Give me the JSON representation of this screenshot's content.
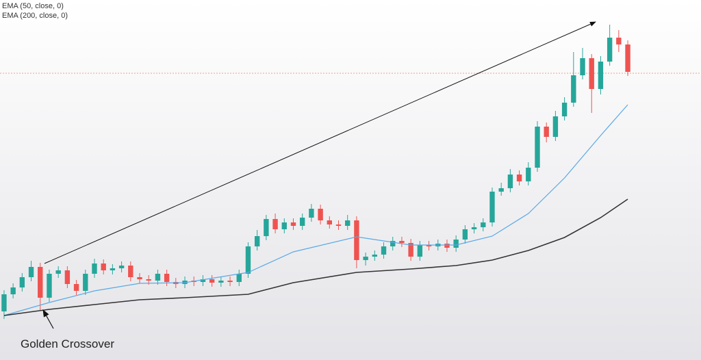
{
  "chart_data": {
    "type": "candlestick",
    "annotation": "Golden Crossover",
    "xlim": [
      -0.45,
      77.1
    ],
    "ylim": [
      0,
      526
    ],
    "up_color": "#26a69a",
    "down_color": "#ef5350",
    "open": [
      71,
      96,
      106,
      121,
      136,
      91,
      126,
      131,
      111,
      101,
      126,
      141,
      131,
      134,
      138,
      121,
      118,
      116,
      126,
      114,
      111,
      116,
      114,
      118,
      113,
      116,
      114,
      126,
      166,
      181,
      206,
      191,
      201,
      196,
      208,
      221,
      204,
      198,
      196,
      204,
      146,
      151,
      154,
      166,
      174,
      171,
      151,
      168,
      166,
      170,
      164,
      176,
      191,
      194,
      201,
      246,
      251,
      271,
      261,
      281,
      341,
      326,
      356,
      376,
      416,
      441,
      396,
      436,
      471,
      461
    ],
    "high": [
      102,
      112,
      127,
      145,
      142,
      132,
      137,
      137,
      117,
      132,
      148,
      147,
      140,
      144,
      144,
      127,
      124,
      132,
      132,
      120,
      122,
      122,
      124,
      124,
      122,
      122,
      132,
      172,
      190,
      212,
      214,
      207,
      207,
      214,
      228,
      227,
      210,
      204,
      212,
      210,
      157,
      160,
      172,
      180,
      180,
      177,
      174,
      174,
      176,
      176,
      182,
      197,
      200,
      207,
      252,
      259,
      279,
      277,
      289,
      349,
      347,
      364,
      384,
      450,
      456,
      447,
      444,
      490,
      482,
      467
    ],
    "low": [
      60,
      90,
      100,
      115,
      72,
      85,
      120,
      105,
      95,
      95,
      120,
      125,
      125,
      128,
      115,
      112,
      110,
      110,
      108,
      105,
      105,
      108,
      108,
      107,
      107,
      108,
      108,
      120,
      160,
      175,
      185,
      185,
      190,
      190,
      202,
      198,
      192,
      190,
      190,
      134,
      138,
      145,
      148,
      160,
      165,
      145,
      145,
      160,
      160,
      158,
      158,
      170,
      185,
      188,
      195,
      240,
      245,
      255,
      255,
      275,
      318,
      320,
      350,
      370,
      410,
      361,
      388,
      430,
      450,
      415
    ],
    "close": [
      96,
      106,
      121,
      136,
      91,
      126,
      131,
      111,
      101,
      126,
      141,
      131,
      134,
      138,
      121,
      118,
      116,
      126,
      114,
      111,
      116,
      114,
      118,
      113,
      116,
      114,
      126,
      166,
      181,
      206,
      191,
      201,
      196,
      208,
      221,
      204,
      198,
      196,
      204,
      146,
      151,
      154,
      166,
      174,
      171,
      151,
      168,
      166,
      170,
      164,
      176,
      191,
      194,
      201,
      246,
      251,
      271,
      261,
      281,
      341,
      326,
      356,
      376,
      416,
      441,
      396,
      436,
      471,
      461,
      421
    ],
    "hline": {
      "value": 419,
      "color": "#e8a090"
    },
    "series": [
      {
        "name": "EMA (50, close, 0)",
        "color": "#5aa9e6",
        "x": [
          0,
          5,
          10,
          15,
          20,
          27,
          32,
          39,
          45,
          50,
          54,
          58,
          62,
          66,
          69
        ],
        "values": [
          65,
          84,
          101,
          112,
          113,
          128,
          158,
          180,
          168,
          168,
          181,
          214,
          266,
          328,
          373
        ]
      },
      {
        "name": "EMA (200, close, 0)",
        "color": "#333333",
        "x": [
          0,
          5,
          10,
          15,
          20,
          27,
          32,
          39,
          45,
          50,
          54,
          58,
          62,
          66,
          69
        ],
        "values": [
          65,
          74,
          81,
          88,
          91,
          96,
          113,
          128,
          133,
          138,
          146,
          160,
          179,
          208,
          235
        ]
      }
    ]
  }
}
